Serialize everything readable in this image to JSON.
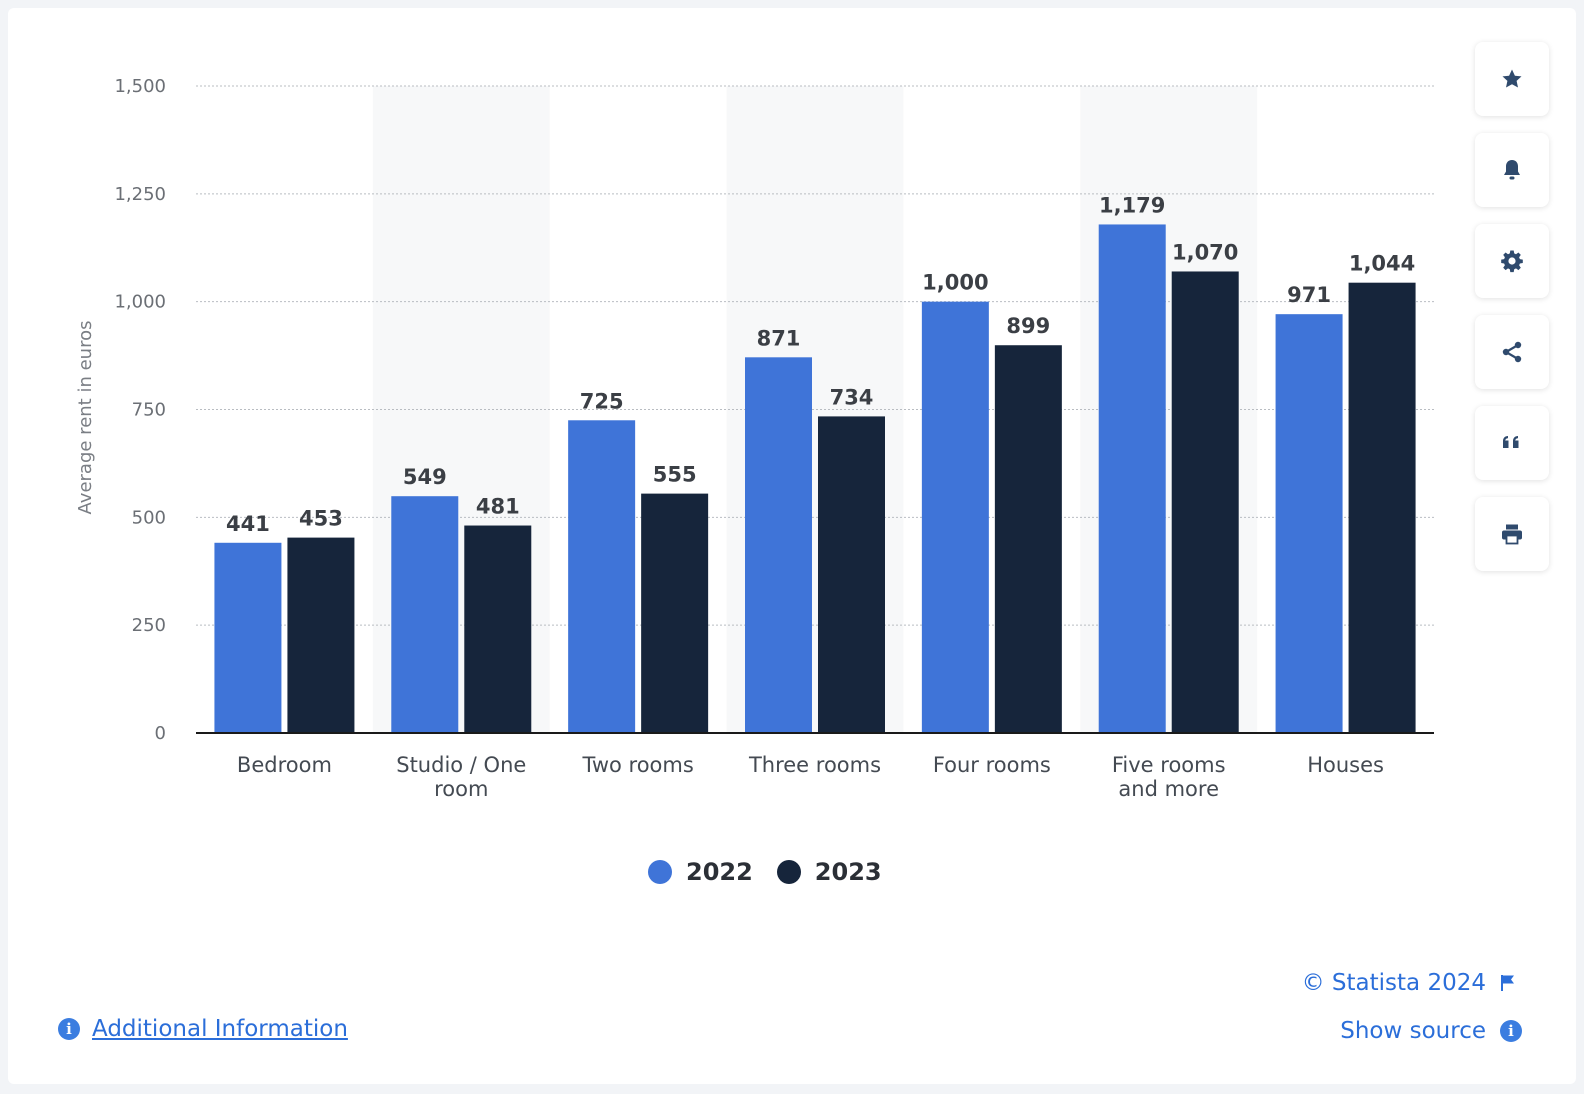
{
  "chart_data": {
    "type": "bar",
    "categories": [
      "Bedroom",
      "Studio / One room",
      "Two rooms",
      "Three rooms",
      "Four rooms",
      "Five rooms and more",
      "Houses"
    ],
    "category_lines": [
      [
        "Bedroom"
      ],
      [
        "Studio / One",
        "room"
      ],
      [
        "Two rooms"
      ],
      [
        "Three rooms"
      ],
      [
        "Four rooms"
      ],
      [
        "Five rooms",
        "and more"
      ],
      [
        "Houses"
      ]
    ],
    "series": [
      {
        "name": "2022",
        "values": [
          441,
          549,
          725,
          871,
          1000,
          1179,
          971
        ],
        "color": "#3f74d8"
      },
      {
        "name": "2023",
        "values": [
          453,
          481,
          555,
          734,
          899,
          1070,
          1044
        ],
        "color": "#16253b"
      }
    ],
    "data_labels": [
      [
        "441",
        "549",
        "725",
        "871",
        "1,000",
        "1,179",
        "971"
      ],
      [
        "453",
        "481",
        "555",
        "734",
        "899",
        "1,070",
        "1,044"
      ]
    ],
    "yticks": [
      0,
      250,
      500,
      750,
      1000,
      1250,
      1500
    ],
    "ytick_labels": [
      "0",
      "250",
      "500",
      "750",
      "1,000",
      "1,250",
      "1,500"
    ],
    "ylim": [
      0,
      1500
    ],
    "ylabel": "Average rent in euros",
    "xlabel": "",
    "grid": true,
    "legend_position": "bottom-center"
  },
  "legend": [
    {
      "label": "2022",
      "color": "#3f74d8"
    },
    {
      "label": "2023",
      "color": "#16253b"
    }
  ],
  "toolbar": {
    "icons": [
      "star-icon",
      "bell-icon",
      "gear-icon",
      "share-icon",
      "quote-icon",
      "print-icon"
    ]
  },
  "footer": {
    "additional_info": "Additional Information",
    "copyright": "© Statista 2024",
    "show_source": "Show source"
  },
  "colors": {
    "accent": "#2b6ed9",
    "series_2022": "#3f74d8",
    "series_2023": "#16253b"
  }
}
